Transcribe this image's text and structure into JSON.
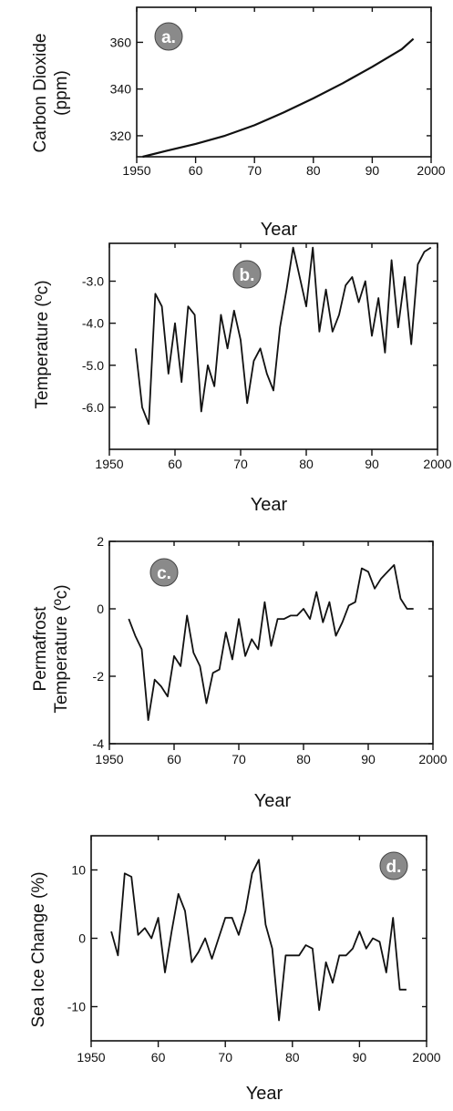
{
  "chart_data": [
    {
      "type": "line",
      "panel_label": "a.",
      "xlabel": "Year",
      "ylabel": [
        "Carbon Dioxide",
        "(ppm)"
      ],
      "xlim": [
        1950,
        2000
      ],
      "ylim": [
        311,
        375
      ],
      "xticks": [
        1950,
        1960,
        1970,
        1980,
        1990,
        2000
      ],
      "xtick_labels": [
        "1950",
        "60",
        "70",
        "80",
        "90",
        "2000"
      ],
      "yticks": [
        320,
        340,
        360
      ],
      "ytick_labels": [
        "320",
        "340",
        "360"
      ],
      "series": [
        {
          "x": [
            1951,
            1955,
            1960,
            1965,
            1970,
            1975,
            1980,
            1985,
            1990,
            1995,
            1997
          ],
          "y": [
            311,
            313.5,
            316.5,
            320,
            324.5,
            330,
            336,
            342.5,
            349.5,
            357,
            361.5
          ]
        }
      ],
      "colors": {
        "line": "#111111",
        "badge": "#8a8a8a"
      }
    },
    {
      "type": "line",
      "panel_label": "b.",
      "xlabel": "Year",
      "ylabel": [
        "Temperature  (ºc)"
      ],
      "xlim": [
        1950,
        2000
      ],
      "ylim": [
        -7.0,
        -2.1
      ],
      "xticks": [
        1950,
        1960,
        1970,
        1980,
        1990,
        2000
      ],
      "xtick_labels": [
        "1950",
        "60",
        "70",
        "80",
        "90",
        "2000"
      ],
      "yticks": [
        -3.0,
        -4.0,
        -5.0,
        -6.0
      ],
      "ytick_labels": [
        "-3.0",
        "-4.0",
        "-5.0",
        "-6.0"
      ],
      "series": [
        {
          "x": [
            1954,
            1955,
            1956,
            1957,
            1958,
            1959,
            1960,
            1961,
            1962,
            1963,
            1964,
            1965,
            1966,
            1967,
            1968,
            1969,
            1970,
            1971,
            1972,
            1973,
            1974,
            1975,
            1976,
            1977,
            1978,
            1979,
            1980,
            1981,
            1982,
            1983,
            1984,
            1985,
            1986,
            1987,
            1988,
            1989,
            1990,
            1991,
            1992,
            1993,
            1994,
            1995,
            1996,
            1997,
            1998,
            1999
          ],
          "y": [
            -4.6,
            -6.0,
            -6.4,
            -3.3,
            -3.6,
            -5.2,
            -4.0,
            -5.4,
            -3.6,
            -3.8,
            -6.1,
            -5.0,
            -5.5,
            -3.8,
            -4.6,
            -3.7,
            -4.4,
            -5.9,
            -4.9,
            -4.6,
            -5.2,
            -5.6,
            -4.1,
            -3.2,
            -2.2,
            -2.9,
            -3.6,
            -2.2,
            -4.2,
            -3.2,
            -4.2,
            -3.8,
            -3.1,
            -2.9,
            -3.5,
            -3.0,
            -4.3,
            -3.4,
            -4.7,
            -2.5,
            -4.1,
            -2.9,
            -4.5,
            -2.6,
            -2.3,
            -2.2
          ]
        }
      ],
      "colors": {
        "line": "#111111",
        "badge": "#8a8a8a"
      }
    },
    {
      "type": "line",
      "panel_label": "c.",
      "xlabel": "Year",
      "ylabel": [
        "Permafrost",
        "Temperature  (ºc)"
      ],
      "xlim": [
        1950,
        2000
      ],
      "ylim": [
        -4,
        2
      ],
      "xticks": [
        1950,
        1960,
        1970,
        1980,
        1990,
        2000
      ],
      "xtick_labels": [
        "1950",
        "60",
        "70",
        "80",
        "90",
        "2000"
      ],
      "yticks": [
        2,
        0,
        -2,
        -4
      ],
      "ytick_labels": [
        "2",
        "0",
        "-2",
        "-4"
      ],
      "series": [
        {
          "x": [
            1953,
            1954,
            1955,
            1956,
            1957,
            1958,
            1959,
            1960,
            1961,
            1962,
            1963,
            1964,
            1965,
            1966,
            1967,
            1968,
            1969,
            1970,
            1971,
            1972,
            1973,
            1974,
            1975,
            1976,
            1977,
            1978,
            1979,
            1980,
            1981,
            1982,
            1983,
            1984,
            1985,
            1986,
            1987,
            1988,
            1989,
            1990,
            1991,
            1992,
            1993,
            1994,
            1995,
            1996,
            1997
          ],
          "y": [
            -0.3,
            -0.8,
            -1.2,
            -3.3,
            -2.1,
            -2.3,
            -2.6,
            -1.4,
            -1.7,
            -0.2,
            -1.3,
            -1.7,
            -2.8,
            -1.9,
            -1.8,
            -0.7,
            -1.5,
            -0.3,
            -1.4,
            -0.9,
            -1.2,
            0.2,
            -1.1,
            -0.3,
            -0.3,
            -0.2,
            -0.2,
            0.0,
            -0.3,
            0.5,
            -0.4,
            0.2,
            -0.8,
            -0.4,
            0.1,
            0.2,
            1.2,
            1.1,
            0.6,
            0.9,
            1.1,
            1.3,
            0.3,
            0.0,
            0.0
          ]
        }
      ],
      "colors": {
        "line": "#111111",
        "badge": "#8a8a8a"
      }
    },
    {
      "type": "line",
      "panel_label": "d.",
      "xlabel": "Year",
      "ylabel": [
        "Sea Ice Change  (%)"
      ],
      "xlim": [
        1950,
        2000
      ],
      "ylim": [
        -15,
        15
      ],
      "xticks": [
        1950,
        1960,
        1970,
        1980,
        1990,
        2000
      ],
      "xtick_labels": [
        "1950",
        "60",
        "70",
        "80",
        "90",
        "2000"
      ],
      "yticks": [
        10,
        0,
        -10
      ],
      "ytick_labels": [
        "10",
        "0",
        "-10"
      ],
      "series": [
        {
          "x": [
            1953,
            1954,
            1955,
            1956,
            1957,
            1958,
            1959,
            1960,
            1961,
            1962,
            1963,
            1964,
            1965,
            1966,
            1967,
            1968,
            1969,
            1970,
            1971,
            1972,
            1973,
            1974,
            1975,
            1976,
            1977,
            1978,
            1979,
            1980,
            1981,
            1982,
            1983,
            1984,
            1985,
            1986,
            1987,
            1988,
            1989,
            1990,
            1991,
            1992,
            1993,
            1994,
            1995,
            1996,
            1997
          ],
          "y": [
            1.0,
            -2.5,
            9.5,
            9.0,
            0.5,
            1.5,
            0.0,
            3.0,
            -5.0,
            1.0,
            6.5,
            4.0,
            -3.5,
            -2.0,
            0.0,
            -3.0,
            0.0,
            3.0,
            3.0,
            0.5,
            4.0,
            9.5,
            11.5,
            2.0,
            -1.5,
            -12.0,
            -2.5,
            -2.5,
            -2.5,
            -1.0,
            -1.5,
            -10.5,
            -3.5,
            -6.5,
            -2.5,
            -2.5,
            -1.5,
            1.0,
            -1.5,
            0.0,
            -0.5,
            -5.0,
            3.0,
            -7.5,
            -7.5
          ]
        }
      ],
      "colors": {
        "line": "#111111",
        "badge": "#8a8a8a"
      }
    }
  ]
}
